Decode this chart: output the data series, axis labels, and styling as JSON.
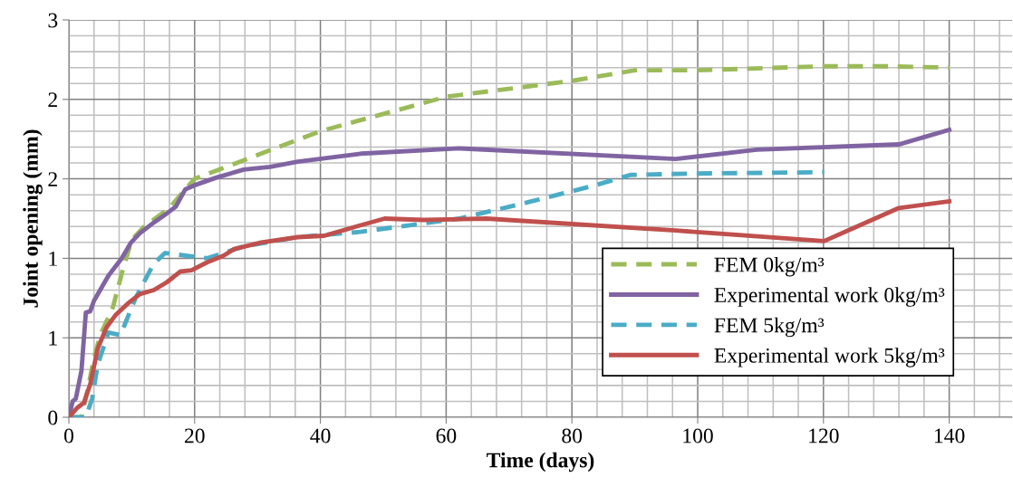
{
  "chart_data": {
    "type": "line",
    "xlabel": "Time (days)",
    "ylabel": "Joint opening (mm)",
    "xlim": [
      0,
      150
    ],
    "ylim": [
      0,
      3
    ],
    "xticks": [
      0,
      {
        "value": 4,
        "label": null
      },
      {
        "value": 8,
        "label": null
      },
      {
        "value": 12,
        "label": null
      },
      {
        "value": 16,
        "label": null
      },
      20,
      {
        "value": 24,
        "label": null
      },
      {
        "value": 28,
        "label": null
      },
      {
        "value": 32,
        "label": null
      },
      {
        "value": 36,
        "label": null
      },
      40,
      {
        "value": 44,
        "label": null
      },
      {
        "value": 48,
        "label": null
      },
      {
        "value": 52,
        "label": null
      },
      {
        "value": 56,
        "label": null
      },
      60,
      {
        "value": 64,
        "label": null
      },
      {
        "value": 68,
        "label": null
      },
      {
        "value": 72,
        "label": null
      },
      {
        "value": 76,
        "label": null
      },
      80,
      {
        "value": 84,
        "label": null
      },
      {
        "value": 88,
        "label": null
      },
      {
        "value": 92,
        "label": null
      },
      {
        "value": 96,
        "label": null
      },
      100,
      {
        "value": 104,
        "label": null
      },
      {
        "value": 108,
        "label": null
      },
      {
        "value": 112,
        "label": null
      },
      {
        "value": 116,
        "label": null
      },
      120,
      {
        "value": 124,
        "label": null
      },
      {
        "value": 128,
        "label": null
      },
      {
        "value": 132,
        "label": null
      },
      {
        "value": 136,
        "label": null
      },
      140,
      {
        "value": 144,
        "label": null
      },
      {
        "value": 148,
        "label": null
      }
    ],
    "yticks": [
      0,
      {
        "value": 0.12,
        "label": null
      },
      {
        "value": 0.24,
        "label": null
      },
      {
        "value": 0.36,
        "label": null
      },
      {
        "value": 0.48,
        "label": null
      },
      {
        "value": 0.6,
        "label": "1"
      },
      {
        "value": 0.72,
        "label": null
      },
      {
        "value": 0.84,
        "label": null
      },
      {
        "value": 0.96,
        "label": null
      },
      {
        "value": 1.08,
        "label": null
      },
      {
        "value": 1.2,
        "label": "1"
      },
      {
        "value": 1.32,
        "label": null
      },
      {
        "value": 1.44,
        "label": null
      },
      {
        "value": 1.56,
        "label": null
      },
      {
        "value": 1.68,
        "label": null
      },
      {
        "value": 1.8,
        "label": "2"
      },
      {
        "value": 1.92,
        "label": null
      },
      {
        "value": 2.04,
        "label": null
      },
      {
        "value": 2.16,
        "label": null
      },
      {
        "value": 2.28,
        "label": null
      },
      {
        "value": 2.4,
        "label": "2"
      },
      {
        "value": 2.52,
        "label": null
      },
      {
        "value": 2.64,
        "label": null
      },
      {
        "value": 2.76,
        "label": null
      },
      {
        "value": 2.88,
        "label": null
      },
      3
    ],
    "grid": true,
    "legend": "bottom right",
    "series": [
      {
        "name": "FEM 0kg/m³",
        "color": "#9bbb59",
        "line_style": "dashed",
        "x": [
          0,
          2,
          3,
          4,
          5,
          7,
          8.5,
          10,
          12,
          16,
          18.5,
          20,
          30,
          40,
          60,
          80,
          90,
          100,
          120,
          130,
          140
        ],
        "values": [
          0,
          0,
          0.21,
          0.45,
          0.62,
          0.83,
          1.1,
          1.34,
          1.44,
          1.58,
          1.72,
          1.8,
          1.98,
          2.16,
          2.42,
          2.54,
          2.62,
          2.62,
          2.65,
          2.65,
          2.64
        ]
      },
      {
        "name": "Experimental work 0kg/m³",
        "color": "#8064a2",
        "line_style": "solid",
        "x": [
          0,
          0.6,
          1.1,
          2,
          2.7,
          3.4,
          4,
          6.3,
          8.4,
          9.9,
          11.3,
          13.5,
          15.6,
          17,
          18.5,
          19.9,
          23.5,
          27.8,
          32,
          36.4,
          46.4,
          62.1,
          96.5,
          109.4,
          132,
          140
        ],
        "values": [
          0,
          0.12,
          0.14,
          0.35,
          0.79,
          0.8,
          0.88,
          1.07,
          1.2,
          1.32,
          1.39,
          1.47,
          1.54,
          1.59,
          1.72,
          1.75,
          1.81,
          1.87,
          1.89,
          1.93,
          1.99,
          2.03,
          1.95,
          2.02,
          2.06,
          2.17
        ]
      },
      {
        "name": "FEM 5kg/m³",
        "color": "#4bacc6",
        "line_style": "dashed",
        "x": [
          0,
          2.7,
          3.7,
          4.6,
          6.3,
          8.2,
          10.6,
          13.5,
          15.3,
          22,
          27.8,
          36.4,
          46.4,
          62.1,
          73.6,
          83.6,
          89.3,
          99.3,
          120.1
        ],
        "values": [
          0,
          0,
          0.14,
          0.4,
          0.64,
          0.62,
          0.9,
          1.16,
          1.24,
          1.2,
          1.29,
          1.36,
          1.4,
          1.5,
          1.63,
          1.75,
          1.83,
          1.84,
          1.85
        ]
      },
      {
        "name": "Experimental work 5kg/m³",
        "color": "#c0504d",
        "line_style": "solid",
        "x": [
          0,
          1.3,
          2.4,
          3.4,
          4.6,
          6,
          7.4,
          9.4,
          11.3,
          13.5,
          15.6,
          17.7,
          19.5,
          22,
          24.6,
          26.3,
          30.6,
          36.4,
          40.6,
          45.7,
          50.2,
          56.4,
          66.4,
          96.5,
          120.1,
          132,
          140
        ],
        "values": [
          0,
          0.07,
          0.11,
          0.25,
          0.52,
          0.68,
          0.77,
          0.86,
          0.93,
          0.96,
          1.02,
          1.1,
          1.11,
          1.17,
          1.22,
          1.27,
          1.32,
          1.36,
          1.37,
          1.44,
          1.5,
          1.49,
          1.5,
          1.41,
          1.33,
          1.58,
          1.63
        ]
      }
    ]
  }
}
